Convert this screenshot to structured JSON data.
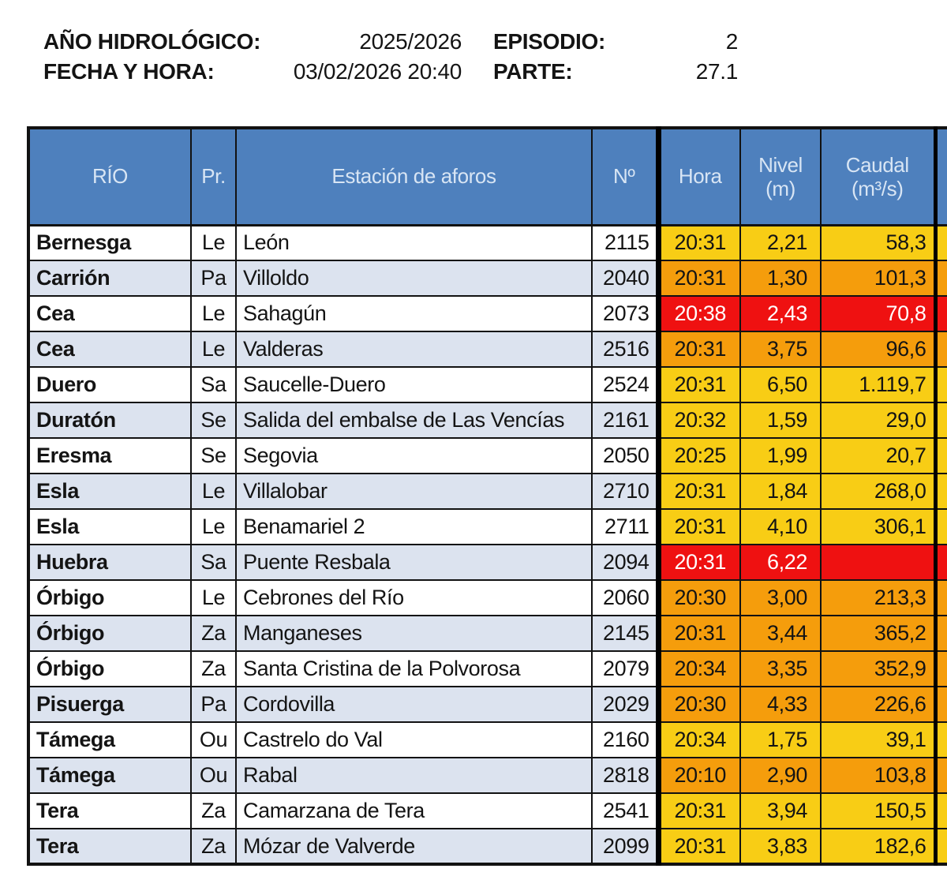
{
  "report_header": {
    "hydro_year_label": "AÑO HIDROLÓGICO:",
    "hydro_year_value": "2025/2026",
    "episode_label": "EPISODIO:",
    "episode_value": "2",
    "datetime_label": "FECHA Y HORA:",
    "datetime_value": "03/02/2026 20:40",
    "part_label": "PARTE:",
    "part_value": "27.1"
  },
  "table": {
    "header": {
      "rio": "RÍO",
      "pr": "Pr.",
      "estacion": "Estación de aforos",
      "num": "Nº",
      "hora": "Hora",
      "nivel_l1": "Nivel",
      "nivel_l2": "(m)",
      "caudal_l1": "Caudal",
      "caudal_l2": "(m³/s)"
    },
    "rows": [
      {
        "rio": "Bernesga",
        "pr": "Le",
        "estacion": "León",
        "num": "2115",
        "hora": "20:31",
        "nivel": "2,21",
        "caudal": "58,3",
        "level": "yellow"
      },
      {
        "rio": "Carrión",
        "pr": "Pa",
        "estacion": "Villoldo",
        "num": "2040",
        "hora": "20:31",
        "nivel": "1,30",
        "caudal": "101,3",
        "level": "orange"
      },
      {
        "rio": "Cea",
        "pr": "Le",
        "estacion": "Sahagún",
        "num": "2073",
        "hora": "20:38",
        "nivel": "2,43",
        "caudal": "70,8",
        "level": "red"
      },
      {
        "rio": "Cea",
        "pr": "Le",
        "estacion": "Valderas",
        "num": "2516",
        "hora": "20:31",
        "nivel": "3,75",
        "caudal": "96,6",
        "level": "orange"
      },
      {
        "rio": "Duero",
        "pr": "Sa",
        "estacion": "Saucelle-Duero",
        "num": "2524",
        "hora": "20:31",
        "nivel": "6,50",
        "caudal": "1.119,7",
        "level": "yellow"
      },
      {
        "rio": "Duratón",
        "pr": "Se",
        "estacion": "Salida del embalse de Las Vencías",
        "num": "2161",
        "hora": "20:32",
        "nivel": "1,59",
        "caudal": "29,0",
        "level": "yellow"
      },
      {
        "rio": "Eresma",
        "pr": "Se",
        "estacion": "Segovia",
        "num": "2050",
        "hora": "20:25",
        "nivel": "1,99",
        "caudal": "20,7",
        "level": "yellow"
      },
      {
        "rio": "Esla",
        "pr": "Le",
        "estacion": "Villalobar",
        "num": "2710",
        "hora": "20:31",
        "nivel": "1,84",
        "caudal": "268,0",
        "level": "yellow"
      },
      {
        "rio": "Esla",
        "pr": "Le",
        "estacion": "Benamariel 2",
        "num": "2711",
        "hora": "20:31",
        "nivel": "4,10",
        "caudal": "306,1",
        "level": "yellow"
      },
      {
        "rio": "Huebra",
        "pr": "Sa",
        "estacion": "Puente Resbala",
        "num": "2094",
        "hora": "20:31",
        "nivel": "6,22",
        "caudal": "",
        "level": "red"
      },
      {
        "rio": "Órbigo",
        "pr": "Le",
        "estacion": "Cebrones del Río",
        "num": "2060",
        "hora": "20:30",
        "nivel": "3,00",
        "caudal": "213,3",
        "level": "orange"
      },
      {
        "rio": "Órbigo",
        "pr": "Za",
        "estacion": "Manganeses",
        "num": "2145",
        "hora": "20:31",
        "nivel": "3,44",
        "caudal": "365,2",
        "level": "orange"
      },
      {
        "rio": "Órbigo",
        "pr": "Za",
        "estacion": "Santa Cristina de la Polvorosa",
        "num": "2079",
        "hora": "20:34",
        "nivel": "3,35",
        "caudal": "352,9",
        "level": "orange"
      },
      {
        "rio": "Pisuerga",
        "pr": "Pa",
        "estacion": "Cordovilla",
        "num": "2029",
        "hora": "20:30",
        "nivel": "4,33",
        "caudal": "226,6",
        "level": "orange"
      },
      {
        "rio": "Támega",
        "pr": "Ou",
        "estacion": "Castrelo do Val",
        "num": "2160",
        "hora": "20:34",
        "nivel": "1,75",
        "caudal": "39,1",
        "level": "yellow"
      },
      {
        "rio": "Támega",
        "pr": "Ou",
        "estacion": "Rabal",
        "num": "2818",
        "hora": "20:10",
        "nivel": "2,90",
        "caudal": "103,8",
        "level": "orange"
      },
      {
        "rio": "Tera",
        "pr": "Za",
        "estacion": "Camarzana de Tera",
        "num": "2541",
        "hora": "20:31",
        "nivel": "3,94",
        "caudal": "150,5",
        "level": "yellow"
      },
      {
        "rio": "Tera",
        "pr": "Za",
        "estacion": "Mózar de Valverde",
        "num": "2099",
        "hora": "20:31",
        "nivel": "3,83",
        "caudal": "182,6",
        "level": "yellow"
      }
    ]
  },
  "colors": {
    "alert_yellow": "#F8CD15",
    "alert_orange": "#F59D0C",
    "alert_red": "#EF1111",
    "alert_red_text": "#FFFFFF",
    "header_blue": "#4E80BD",
    "header_text": "#D8E5F4",
    "row_alt": "#DCE3EF",
    "border_dark": "#121212"
  }
}
